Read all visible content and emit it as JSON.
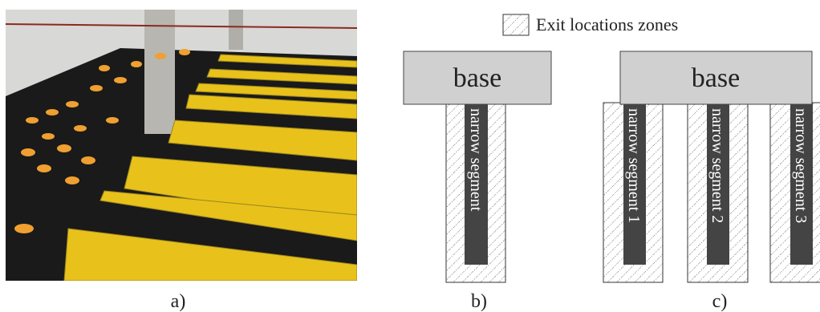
{
  "figure": {
    "panels": [
      {
        "label": "a)"
      },
      {
        "label": "b)"
      },
      {
        "label": "c)"
      }
    ],
    "legend": "Exit locations zones",
    "b": {
      "base": "base",
      "segment": "narrow segment"
    },
    "c": {
      "base": "base",
      "segments": [
        "narrow segment 1",
        "narrow segment 2",
        "narrow segment 3"
      ]
    }
  }
}
